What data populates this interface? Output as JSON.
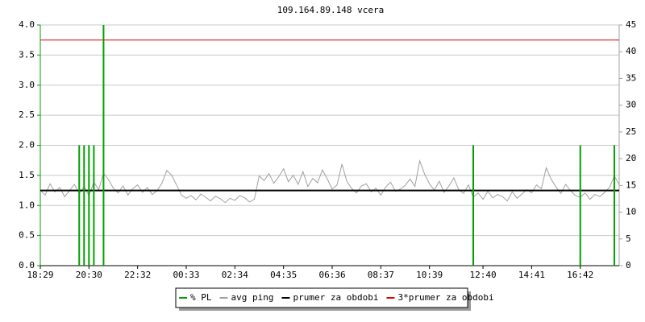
{
  "chart_data": {
    "type": "line",
    "title": "109.164.89.148 vcera",
    "categories": [
      "18:29",
      null,
      null,
      null,
      null,
      null,
      null,
      null,
      null,
      null,
      "20:30",
      null,
      null,
      null,
      null,
      null,
      null,
      null,
      null,
      null,
      "22:32",
      null,
      null,
      null,
      null,
      null,
      null,
      null,
      null,
      null,
      "00:33",
      null,
      null,
      null,
      null,
      null,
      null,
      null,
      null,
      null,
      "02:34",
      null,
      null,
      null,
      null,
      null,
      null,
      null,
      null,
      null,
      "04:35",
      null,
      null,
      null,
      null,
      null,
      null,
      null,
      null,
      null,
      "06:36",
      null,
      null,
      null,
      null,
      null,
      null,
      null,
      null,
      null,
      "08:37",
      null,
      null,
      null,
      null,
      null,
      null,
      null,
      null,
      null,
      "10:39",
      null,
      null,
      null,
      null,
      null,
      null,
      null,
      null,
      null,
      null,
      "12:40",
      null,
      null,
      null,
      null,
      null,
      null,
      null,
      null,
      null,
      "14:41",
      null,
      null,
      null,
      null,
      null,
      null,
      null,
      null,
      null,
      "16:42",
      null,
      null,
      null,
      null,
      null,
      null,
      null,
      null
    ],
    "series": [
      {
        "name": "% PL",
        "color": "#00a000",
        "kind": "spike",
        "values": [
          0,
          0,
          0,
          0,
          0,
          0,
          0,
          0,
          2.0,
          2.0,
          2.0,
          2.0,
          0,
          4.0,
          0,
          0,
          0,
          0,
          0,
          0,
          0,
          0,
          0,
          0,
          0,
          0,
          0,
          0,
          0,
          0,
          0,
          0,
          0,
          0,
          0,
          0,
          0,
          0,
          0,
          0,
          0,
          0,
          0,
          0,
          0,
          0,
          0,
          0,
          0,
          0,
          0,
          0,
          0,
          0,
          0,
          0,
          0,
          0,
          0,
          0,
          0,
          0,
          0,
          0,
          0,
          0,
          0,
          0,
          0,
          0,
          0,
          0,
          0,
          0,
          0,
          0,
          0,
          0,
          0,
          0,
          0,
          0,
          0,
          0,
          0,
          0,
          0,
          0,
          0,
          2.0,
          0,
          0,
          0,
          0,
          0,
          0,
          0,
          0,
          0,
          0,
          0,
          0,
          0,
          0,
          0,
          0,
          0,
          0,
          0,
          0,
          0,
          2.0,
          0,
          0,
          0,
          0,
          0,
          0,
          2.0,
          0
        ]
      },
      {
        "name": "avg ping",
        "color": "#a0a0a0",
        "kind": "line",
        "axis": "y2",
        "values": [
          14.1,
          13.2,
          15.3,
          13.8,
          14.6,
          12.9,
          14.0,
          15.2,
          13.5,
          14.8,
          13.1,
          15.6,
          14.2,
          17.3,
          16.1,
          14.5,
          13.6,
          14.9,
          13.2,
          14.4,
          15.1,
          13.7,
          14.6,
          13.3,
          14.0,
          15.4,
          17.8,
          16.9,
          15.1,
          13.2,
          12.6,
          13.1,
          12.3,
          13.4,
          12.8,
          12.1,
          13.0,
          12.5,
          11.8,
          12.6,
          12.2,
          13.1,
          12.7,
          11.9,
          12.4,
          16.8,
          15.9,
          17.2,
          15.4,
          16.6,
          18.1,
          15.7,
          16.9,
          15.2,
          17.6,
          14.8,
          16.3,
          15.5,
          17.9,
          16.2,
          14.3,
          15.1,
          19.0,
          15.8,
          14.4,
          13.6,
          14.9,
          15.3,
          13.8,
          14.5,
          13.2,
          14.7,
          15.6,
          13.9,
          14.3,
          15.0,
          16.2,
          14.8,
          19.6,
          17.1,
          15.3,
          14.1,
          15.8,
          13.7,
          14.9,
          16.4,
          14.2,
          13.5,
          15.1,
          12.8,
          13.6,
          12.4,
          13.9,
          12.7,
          13.3,
          12.9,
          12.1,
          13.8,
          12.6,
          13.4,
          14.2,
          13.6,
          15.1,
          14.4,
          18.3,
          16.2,
          14.7,
          13.5,
          15.2,
          14.0,
          13.1,
          12.8,
          13.6,
          12.4,
          13.3,
          12.9,
          13.7,
          14.6,
          16.8,
          15.1
        ]
      },
      {
        "name": "prumer za obdobi",
        "color": "#000000",
        "kind": "hline",
        "axis": "y2",
        "value": 14.06
      },
      {
        "name": "3*prumer za obdobi",
        "color": "#e00000",
        "kind": "hline",
        "axis": "y2",
        "value": 42.18
      }
    ],
    "ylim": [
      0,
      4
    ],
    "yticks": [
      {
        "value": 0,
        "label": "0.0"
      },
      {
        "value": 0.5,
        "label": "0.5"
      },
      {
        "value": 1,
        "label": "1.0"
      },
      {
        "value": 1.5,
        "label": "1.5"
      },
      {
        "value": 2,
        "label": "2.0"
      },
      {
        "value": 2.5,
        "label": "2.5"
      },
      {
        "value": 3,
        "label": "3.0"
      },
      {
        "value": 3.5,
        "label": "3.5"
      },
      {
        "value": 4,
        "label": "4.0"
      }
    ],
    "y2lim": [
      0,
      45
    ],
    "y2ticks": [
      0,
      5,
      10,
      15,
      20,
      25,
      30,
      35,
      40,
      45
    ],
    "grid": true
  }
}
